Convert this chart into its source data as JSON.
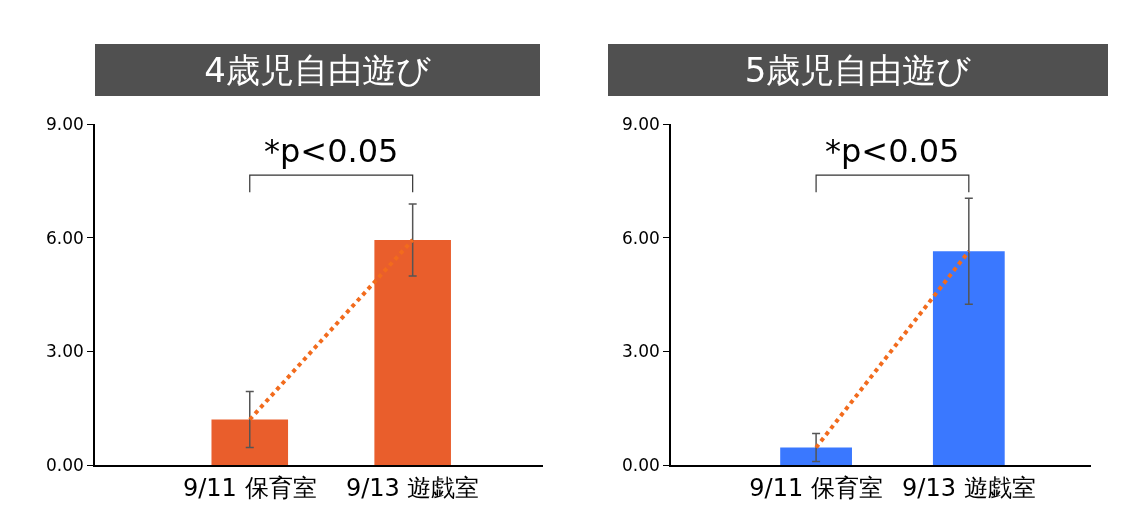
{
  "chart_data": [
    {
      "type": "bar",
      "title": "4歳児自由遊び",
      "categories": [
        "9/11 保育室",
        "9/13 遊戯室"
      ],
      "ylim": [
        0,
        9
      ],
      "yticks": [
        {
          "value": 0,
          "label": "0.00"
        },
        {
          "value": 3,
          "label": "3.00"
        },
        {
          "value": 6,
          "label": "6.00"
        },
        {
          "value": 9,
          "label": "9.00"
        }
      ],
      "grid": false,
      "marker": "none",
      "annotations": [
        "*p<0.05"
      ],
      "series": [
        {
          "color": "#e95e2c",
          "values": [
            1.2,
            5.94
          ],
          "errors": [
            0.74,
            0.95
          ]
        },
        {
          "type": "line",
          "color": "#f26b1d",
          "line_style": "dotted",
          "values": [
            1.2,
            5.94
          ]
        }
      ]
    },
    {
      "type": "bar",
      "title": "5歳児自由遊び",
      "categories": [
        "9/11 保育室",
        "9/13 遊戯室"
      ],
      "ylim": [
        0,
        9
      ],
      "yticks": [
        {
          "value": 0,
          "label": "0.00"
        },
        {
          "value": 3,
          "label": "3.00"
        },
        {
          "value": 6,
          "label": "6.00"
        },
        {
          "value": 9,
          "label": "9.00"
        }
      ],
      "grid": false,
      "marker": "none",
      "annotations": [
        "*p<0.05"
      ],
      "series": [
        {
          "color": "#3a78ff",
          "values": [
            0.46,
            5.64
          ],
          "errors": [
            0.37,
            1.4
          ]
        },
        {
          "type": "line",
          "color": "#f26b1d",
          "line_style": "dotted",
          "values": [
            0.46,
            5.64
          ]
        }
      ]
    }
  ]
}
